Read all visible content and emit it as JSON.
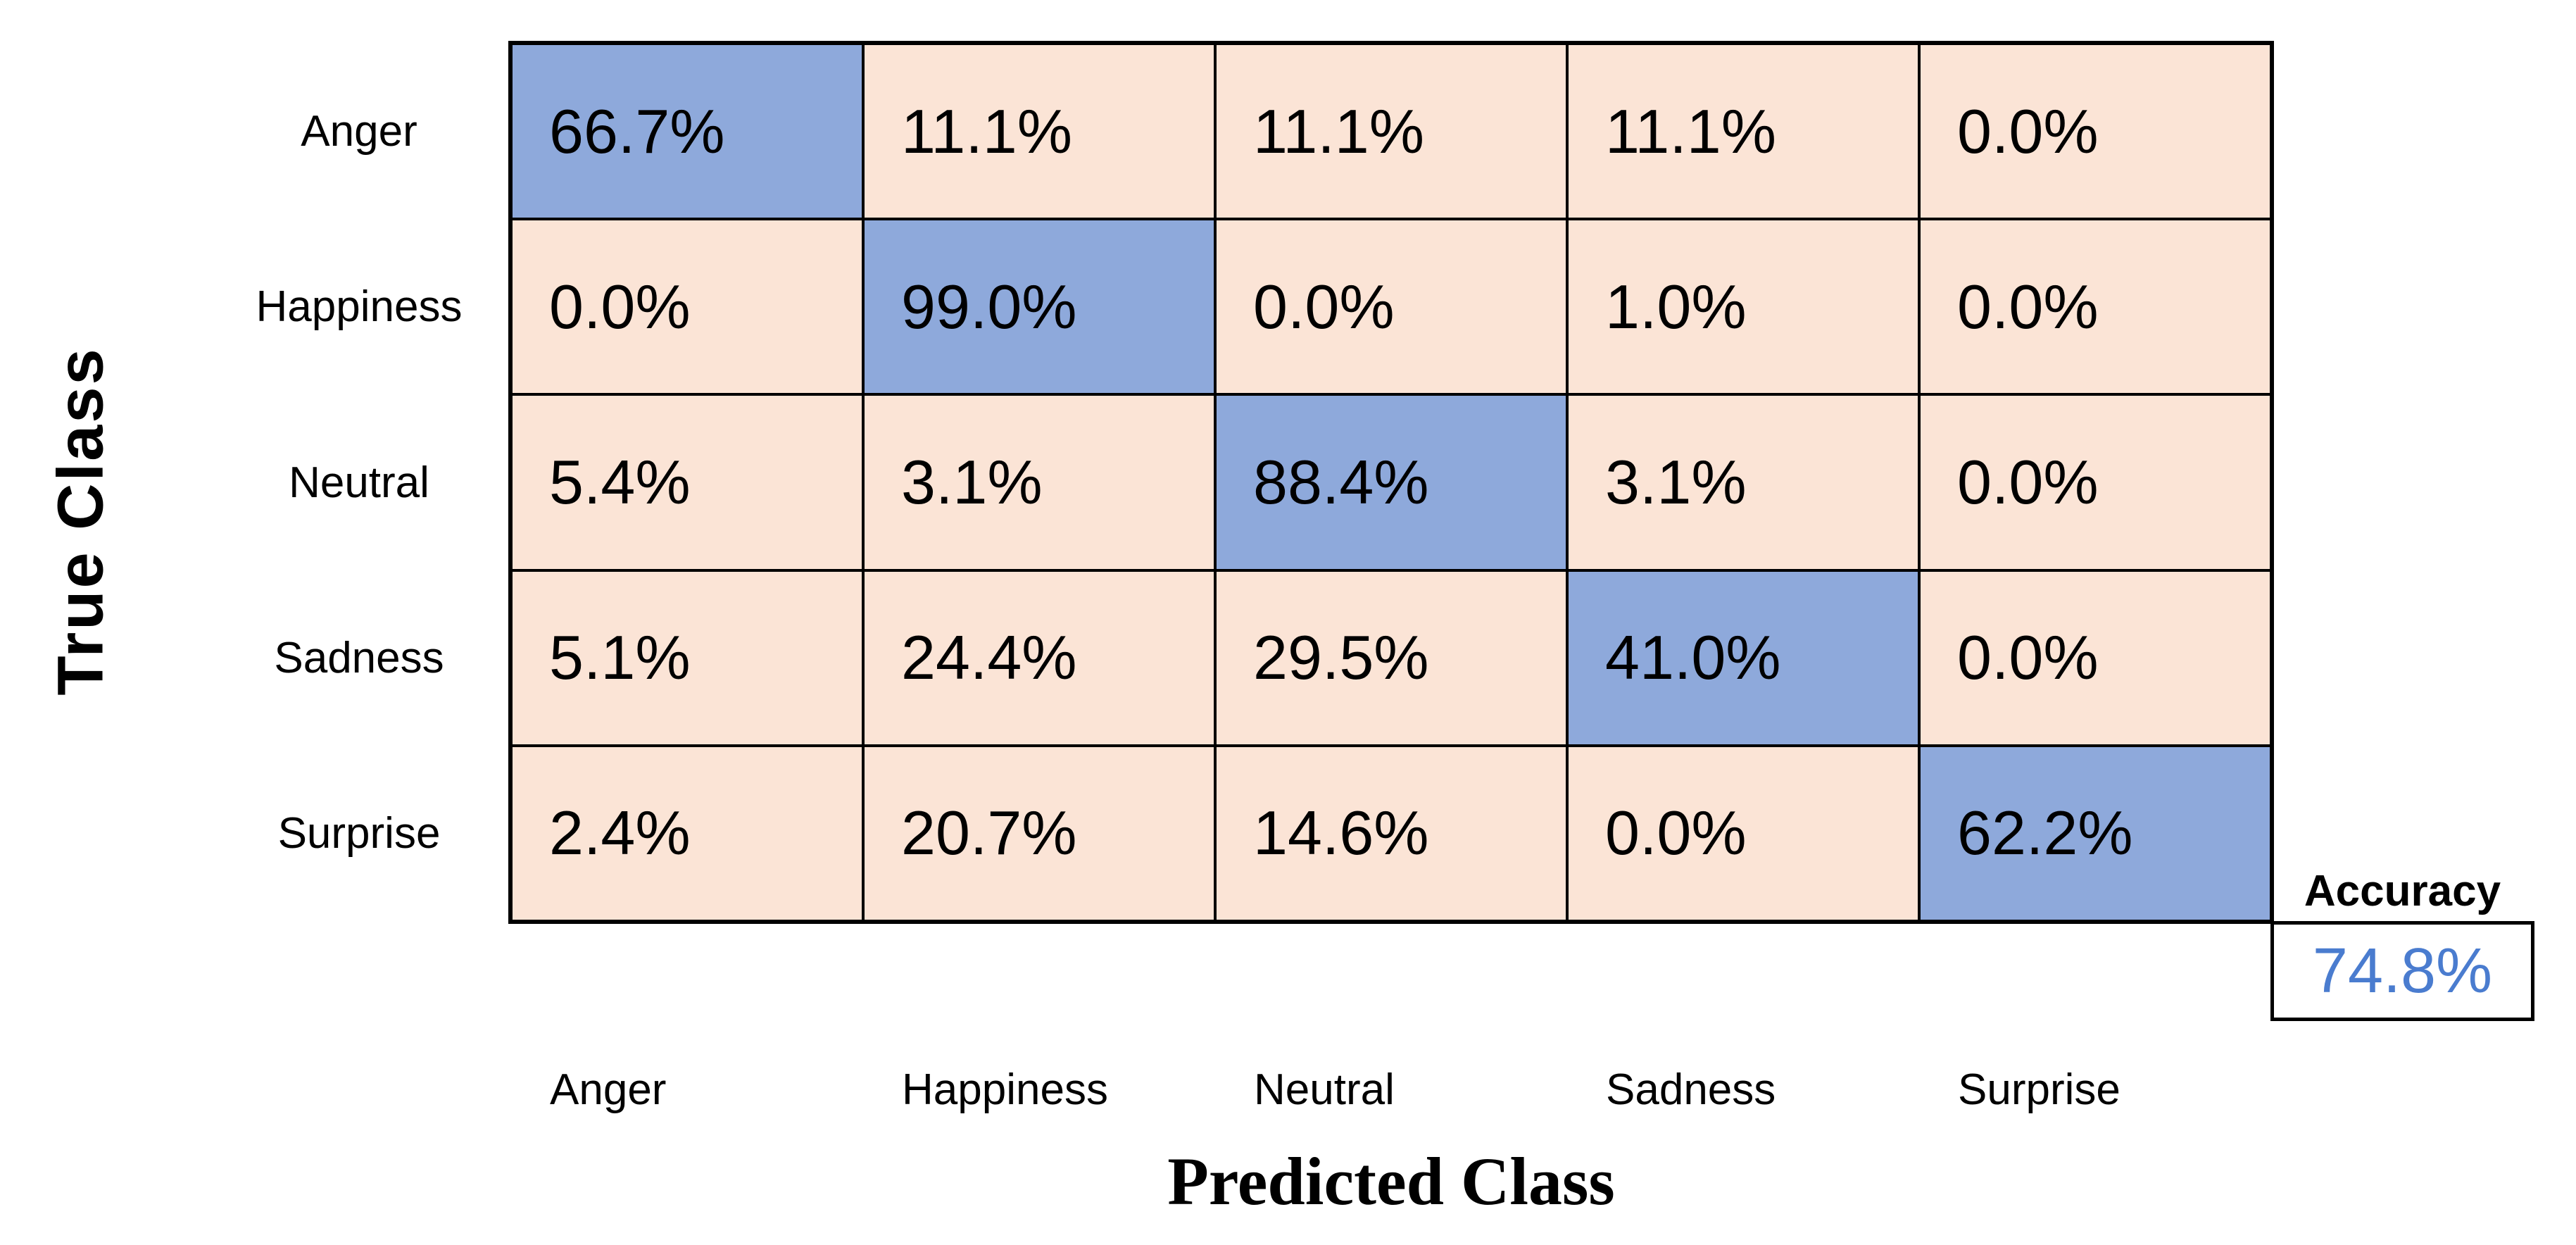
{
  "chart_data": {
    "type": "heatmap",
    "subtype": "confusion-matrix-row-normalized",
    "title": "",
    "xlabel": "Predicted Class",
    "ylabel": "True Class",
    "classes": [
      "Anger",
      "Happiness",
      "Neutral",
      "Sadness",
      "Surprise"
    ],
    "unit": "percent",
    "rows": [
      {
        "true_class": "Anger",
        "values": [
          66.7,
          11.1,
          11.1,
          11.1,
          0.0
        ],
        "labels": [
          "66.7%",
          "11.1%",
          "11.1%",
          "11.1%",
          "0.0%"
        ]
      },
      {
        "true_class": "Happiness",
        "values": [
          0.0,
          99.0,
          0.0,
          1.0,
          0.0
        ],
        "labels": [
          "0.0%",
          "99.0%",
          "0.0%",
          "1.0%",
          "0.0%"
        ]
      },
      {
        "true_class": "Neutral",
        "values": [
          5.4,
          3.1,
          88.4,
          3.1,
          0.0
        ],
        "labels": [
          "5.4%",
          "3.1%",
          "88.4%",
          "3.1%",
          "0.0%"
        ]
      },
      {
        "true_class": "Sadness",
        "values": [
          5.1,
          24.4,
          29.5,
          41.0,
          0.0
        ],
        "labels": [
          "5.1%",
          "24.4%",
          "29.5%",
          "41.0%",
          "0.0%"
        ]
      },
      {
        "true_class": "Surprise",
        "values": [
          2.4,
          20.7,
          14.6,
          0.0,
          62.2
        ],
        "labels": [
          "2.4%",
          "20.7%",
          "14.6%",
          "0.0%",
          "62.2%"
        ]
      }
    ],
    "accuracy": {
      "label": "Accuracy",
      "value": 74.8,
      "value_text": "74.8%"
    },
    "colors": {
      "diagonal_fill": "#8EA9DB",
      "off_diagonal_fill": "#FBE4D6",
      "accuracy_value_text": "#4A7CCF",
      "grid_line": "#000000"
    },
    "layout_hints": {
      "grid": "5x5 equal cells",
      "legend": "none",
      "cell_text_align": "left-center"
    }
  }
}
